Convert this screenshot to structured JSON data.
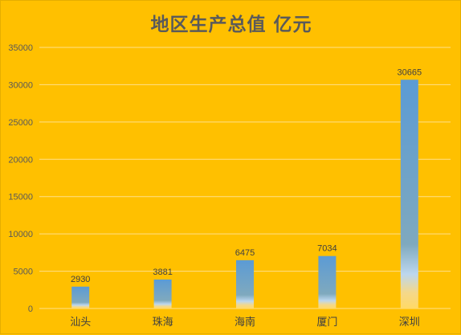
{
  "chart_data": {
    "type": "bar",
    "title": "地区生产总值 亿元",
    "categories": [
      "汕头",
      "珠海",
      "海南",
      "厦门",
      "深圳"
    ],
    "values": [
      2930,
      3881,
      6475,
      7034,
      30665
    ],
    "data_labels": [
      "2930",
      "3881",
      "6475",
      "7034",
      "30665"
    ],
    "ylim": [
      0,
      35000
    ],
    "yticks": [
      0,
      5000,
      10000,
      15000,
      20000,
      25000,
      30000,
      35000
    ],
    "ytick_labels": [
      "0",
      "5000",
      "10000",
      "15000",
      "20000",
      "25000",
      "30000",
      "35000"
    ],
    "grid": true,
    "legend": "none",
    "colors": {
      "background": "#FFC000",
      "bar_top": "#5B9BD5",
      "bar_mid": "#BDD7EE",
      "bar_bottom": "#FFD966",
      "grid": "#FFE08A"
    }
  }
}
